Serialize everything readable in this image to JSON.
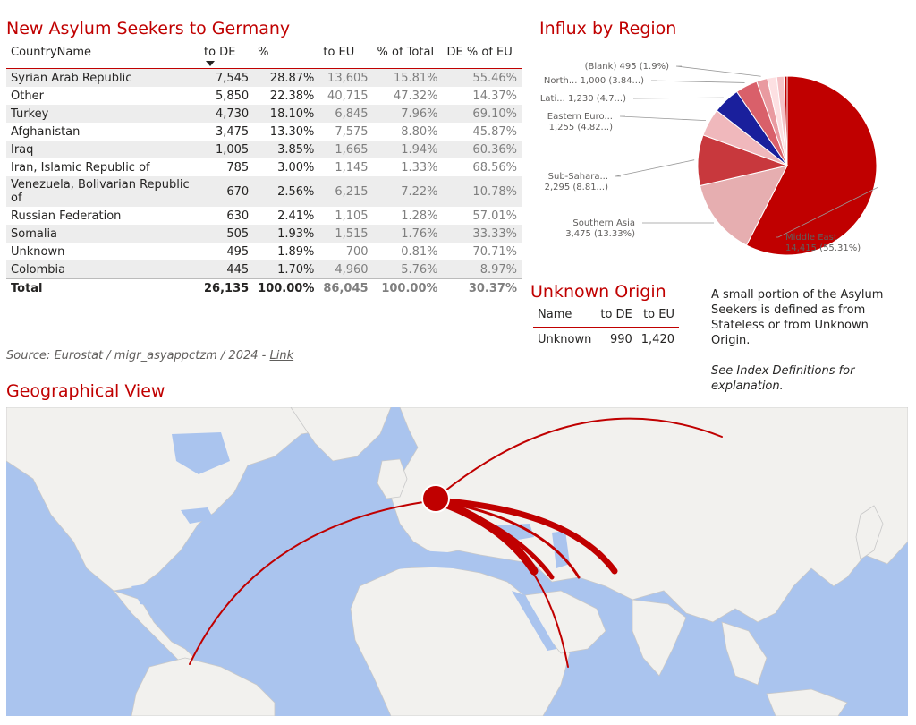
{
  "titles": {
    "main": "New Asylum Seekers to Germany",
    "pie": "Influx by Region",
    "unknown": "Unknown Origin",
    "map": "Geographical View"
  },
  "table": {
    "headers": [
      "CountryName",
      "to DE",
      "%",
      "to EU",
      "% of Total",
      "DE % of EU"
    ],
    "rows": [
      [
        "Syrian Arab Republic",
        "7,545",
        "28.87%",
        "13,605",
        "15.81%",
        "55.46%"
      ],
      [
        "Other",
        "5,850",
        "22.38%",
        "40,715",
        "47.32%",
        "14.37%"
      ],
      [
        "Turkey",
        "4,730",
        "18.10%",
        "6,845",
        "7.96%",
        "69.10%"
      ],
      [
        "Afghanistan",
        "3,475",
        "13.30%",
        "7,575",
        "8.80%",
        "45.87%"
      ],
      [
        "Iraq",
        "1,005",
        "3.85%",
        "1,665",
        "1.94%",
        "60.36%"
      ],
      [
        "Iran, Islamic Republic of",
        "785",
        "3.00%",
        "1,145",
        "1.33%",
        "68.56%"
      ],
      [
        "Venezuela, Bolivarian Republic of",
        "670",
        "2.56%",
        "6,215",
        "7.22%",
        "10.78%"
      ],
      [
        "Russian Federation",
        "630",
        "2.41%",
        "1,105",
        "1.28%",
        "57.01%"
      ],
      [
        "Somalia",
        "505",
        "1.93%",
        "1,515",
        "1.76%",
        "33.33%"
      ],
      [
        "Unknown",
        "495",
        "1.89%",
        "700",
        "0.81%",
        "70.71%"
      ],
      [
        "Colombia",
        "445",
        "1.70%",
        "4,960",
        "5.76%",
        "8.97%"
      ]
    ],
    "total": [
      "Total",
      "26,135",
      "100.00%",
      "86,045",
      "100.00%",
      "30.37%"
    ]
  },
  "source": {
    "text": "Source: Eurostat / migr_asyappctzm / 2024 - ",
    "link": "Link"
  },
  "unknown_table": {
    "headers": [
      "Name",
      "to DE",
      "to EU"
    ],
    "row": [
      "Unknown",
      "990",
      "1,420"
    ]
  },
  "note": {
    "line1": "A small portion of the Asylum Seekers is defined as from Stateless or from Unknown Origin.",
    "line2": "See Index Definitions for explanation."
  },
  "chart_data": {
    "type": "pie",
    "title": "Influx by Region",
    "slices": [
      {
        "label": "Middle East",
        "value": 14415,
        "display": "14,415 (55.31%)",
        "color": "#c00000"
      },
      {
        "label": "Southern Asia",
        "value": 3475,
        "display": "3,475 (13.33%)",
        "color": "#e6aeb0"
      },
      {
        "label": "Sub-Sahara...",
        "value": 2295,
        "display": "2,295 (8.81...)",
        "color": "#c8383d"
      },
      {
        "label": "Eastern Euro...",
        "value": 1255,
        "display": "1,255 (4.82...)",
        "color": "#f0b8bc"
      },
      {
        "label": "Lati...",
        "value": 1230,
        "display": "1,230 (4.7...)",
        "color": "#1a1f9c"
      },
      {
        "label": "North...",
        "value": 1000,
        "display": "1,000 (3.84...)",
        "color": "#d9606a"
      },
      {
        "label": "(Blank)",
        "value": 495,
        "display": "495 (1.9%)",
        "color": "#e99aa0"
      },
      {
        "label": "",
        "value": 420,
        "display": "",
        "color": "#fde0e2"
      },
      {
        "label": "",
        "value": 330,
        "display": "",
        "color": "#f5c2c6"
      },
      {
        "label": "",
        "value": 145,
        "display": "",
        "color": "#c00000"
      }
    ]
  },
  "colors": {
    "accent": "#c00000"
  }
}
